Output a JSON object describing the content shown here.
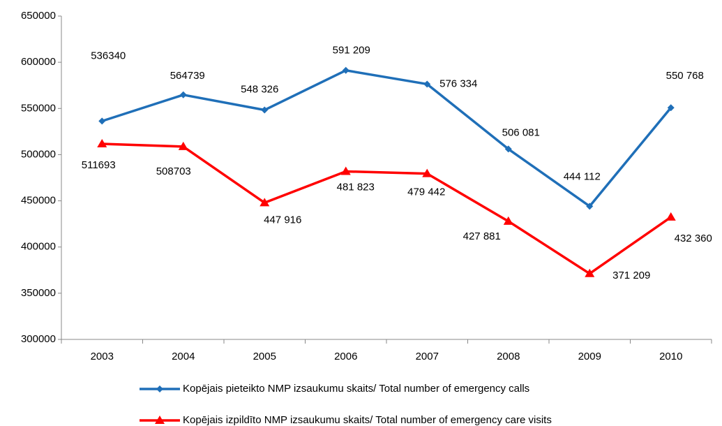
{
  "chart_data": {
    "type": "line",
    "categories": [
      "2003",
      "2004",
      "2005",
      "2006",
      "2007",
      "2008",
      "2009",
      "2010"
    ],
    "series": [
      {
        "name": "Kopējais pieteikto NMP izsaukumu skaits/ Total number of emergency calls",
        "color": "#1f6fb8",
        "marker": "diamond",
        "values": [
          536340,
          564739,
          548326,
          591209,
          576334,
          506081,
          444112,
          550768
        ],
        "value_labels": [
          "536340",
          "564739",
          "548 326",
          "591 209",
          "576 334",
          "506 081",
          "444 112",
          "550 768"
        ]
      },
      {
        "name": "Kopējais izpildīto NMP izsaukumu skaits/ Total number of emergency care visits",
        "color": "#ff0000",
        "marker": "triangle",
        "values": [
          511693,
          508703,
          447916,
          481823,
          479442,
          427881,
          371209,
          432360
        ],
        "value_labels": [
          "511693",
          "508703",
          "447 916",
          "481 823",
          "479 442",
          "427 881",
          "371 209",
          "432 360"
        ]
      }
    ],
    "ylim": [
      300000,
      650000
    ],
    "yticks": [
      300000,
      350000,
      400000,
      450000,
      500000,
      550000,
      600000,
      650000
    ],
    "grid": false,
    "legend": "bottom"
  }
}
